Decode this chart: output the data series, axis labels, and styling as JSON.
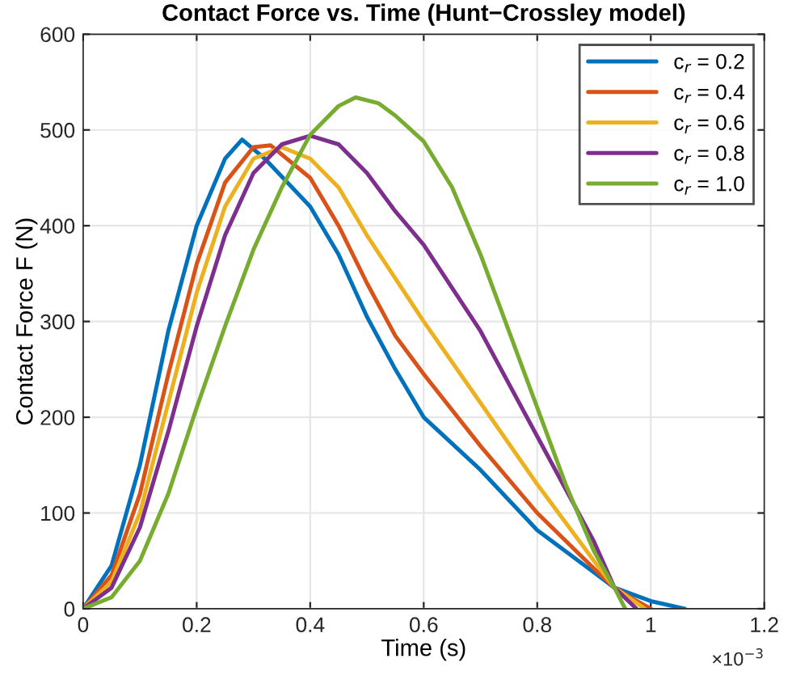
{
  "chart_data": {
    "type": "line",
    "title": "Contact Force vs. Time (Hunt−Crossley model)",
    "xlabel": "Time (s)",
    "ylabel": "Contact Force F (N)",
    "xlim": [
      0,
      1.2
    ],
    "ylim": [
      0,
      600
    ],
    "xticks": [
      0,
      0.2,
      0.4,
      0.6,
      0.8,
      1,
      1.2
    ],
    "yticks": [
      0,
      100,
      200,
      300,
      400,
      500,
      600
    ],
    "annotations": [
      "×10$^{−3}$"
    ],
    "grid": true,
    "legend": "top right",
    "marker": "none",
    "line_style": "solid",
    "series": [
      {
        "name": "c$_{r}$ = 0.2",
        "color": "#0072bd",
        "x": [
          0,
          0.05,
          0.1,
          0.15,
          0.2,
          0.25,
          0.28,
          0.32,
          0.4,
          0.45,
          0.5,
          0.55,
          0.6,
          0.7,
          0.8,
          0.9,
          0.936,
          1.0,
          1.06
        ],
        "values": [
          0,
          45,
          150,
          290,
          400,
          470,
          490,
          470,
          420,
          370,
          305,
          250,
          200,
          145,
          82,
          38,
          22,
          8,
          0
        ]
      },
      {
        "name": "c$_{r}$ = 0.4",
        "color": "#d95319",
        "x": [
          0,
          0.05,
          0.1,
          0.15,
          0.2,
          0.25,
          0.3,
          0.33,
          0.4,
          0.45,
          0.5,
          0.55,
          0.6,
          0.7,
          0.8,
          0.9,
          0.936,
          0.97,
          1.0
        ],
        "values": [
          0,
          35,
          120,
          245,
          360,
          445,
          482,
          484,
          450,
          400,
          340,
          285,
          245,
          170,
          100,
          42,
          22,
          10,
          0
        ]
      },
      {
        "name": "c$_{r}$ = 0.6",
        "color": "#edb120",
        "x": [
          0,
          0.05,
          0.1,
          0.15,
          0.2,
          0.25,
          0.3,
          0.35,
          0.4,
          0.45,
          0.5,
          0.55,
          0.6,
          0.7,
          0.8,
          0.9,
          0.936,
          0.99
        ],
        "values": [
          0,
          28,
          100,
          215,
          330,
          420,
          470,
          482,
          470,
          440,
          390,
          345,
          300,
          215,
          130,
          50,
          22,
          0
        ]
      },
      {
        "name": "c$_{r}$ = 0.8",
        "color": "#7e2f8e",
        "x": [
          0,
          0.05,
          0.1,
          0.15,
          0.2,
          0.25,
          0.3,
          0.35,
          0.4,
          0.45,
          0.5,
          0.55,
          0.6,
          0.7,
          0.8,
          0.9,
          0.936,
          0.975
        ],
        "values": [
          0,
          22,
          85,
          185,
          295,
          390,
          455,
          485,
          494,
          485,
          455,
          415,
          380,
          290,
          180,
          70,
          22,
          0
        ]
      },
      {
        "name": "c$_{r}$ = 1.0",
        "color": "#77ac30",
        "x": [
          0,
          0.05,
          0.1,
          0.15,
          0.2,
          0.25,
          0.3,
          0.35,
          0.4,
          0.45,
          0.48,
          0.52,
          0.55,
          0.6,
          0.65,
          0.7,
          0.75,
          0.8,
          0.85,
          0.9,
          0.936,
          0.955
        ],
        "values": [
          0,
          12,
          50,
          120,
          210,
          295,
          375,
          440,
          495,
          525,
          534,
          528,
          515,
          488,
          440,
          370,
          290,
          210,
          130,
          60,
          22,
          0
        ]
      }
    ]
  }
}
